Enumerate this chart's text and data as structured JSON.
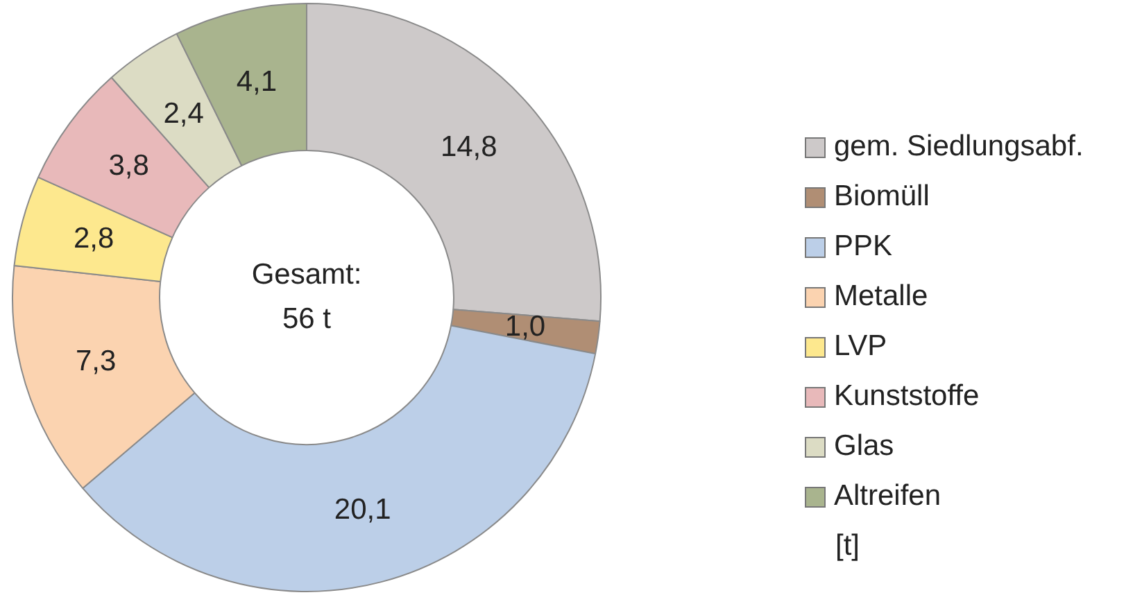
{
  "chart_data": {
    "type": "donut",
    "categories": [
      "gem. Siedlungsabf.",
      "Biomüll",
      "PPK",
      "Metalle",
      "LVP",
      "Kunststoffe",
      "Glas",
      "Altreifen"
    ],
    "values": [
      14.8,
      1.0,
      20.1,
      7.3,
      2.8,
      3.8,
      2.4,
      4.1
    ],
    "value_labels": [
      "14,8",
      "1,0",
      "20,1",
      "7,3",
      "2,8",
      "3,8",
      "2,4",
      "4,1"
    ],
    "colors": [
      "#cdc9c9",
      "#b08e74",
      "#bccfe8",
      "#fbd3b0",
      "#fde88e",
      "#e8b9ba",
      "#dcdcc4",
      "#a9b48e"
    ],
    "legend": "right",
    "annotations": [
      "Gesamt:",
      "56 t",
      "[t]"
    ]
  }
}
